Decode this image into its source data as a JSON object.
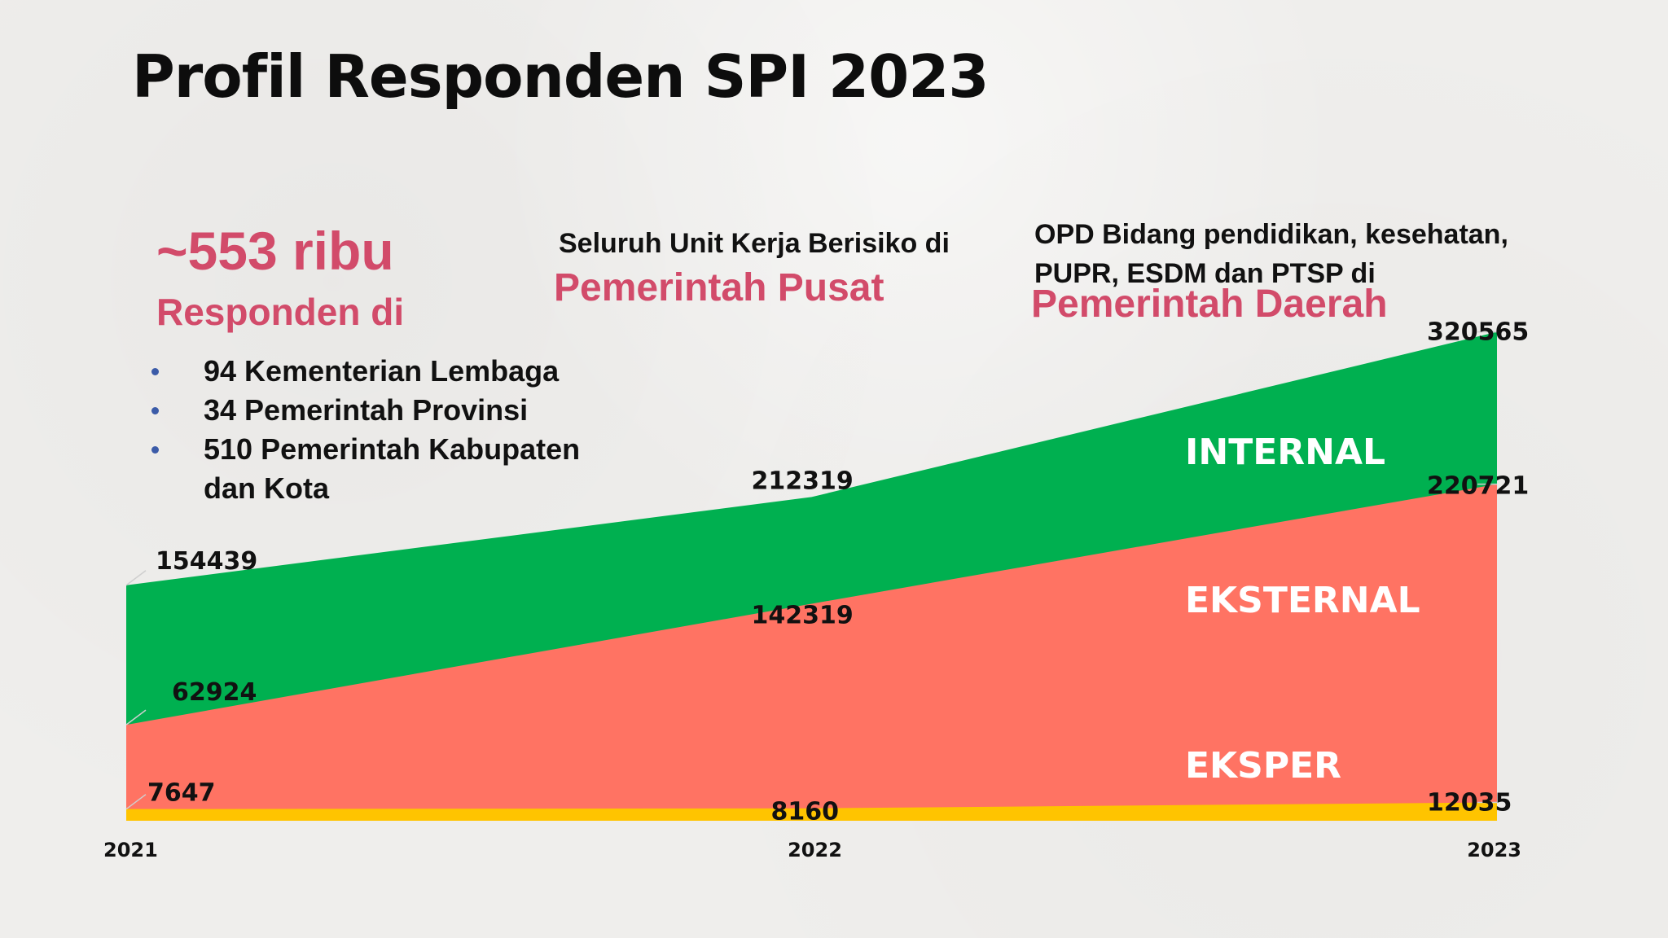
{
  "title": "Profil Responden SPI 2023",
  "summary": {
    "count": "~553 ribu",
    "label": "Responden di",
    "items": [
      "94 Kementerian Lembaga",
      "34 Pemerintah Provinsi",
      "510 Pemerintah Kabupaten dan Kota"
    ]
  },
  "pusat": {
    "description": "Seluruh Unit Kerja Berisiko di",
    "label": "Pemerintah Pusat"
  },
  "daerah": {
    "description_line1": "OPD Bidang pendidikan, kesehatan,",
    "description_line2": "PUPR, ESDM dan PTSP di",
    "label": "Pemerintah Daerah"
  },
  "chart_data": {
    "type": "area",
    "stacked": true,
    "x": [
      "2021",
      "2022",
      "2023"
    ],
    "series": [
      {
        "name": "EKSPER",
        "values": [
          7647,
          8160,
          12035
        ],
        "color": "#ffc400"
      },
      {
        "name": "EKSTERNAL",
        "values": [
          62924,
          142319,
          220721
        ],
        "color": "#ff7363"
      },
      {
        "name": "INTERNAL",
        "values": [
          154439,
          212319,
          320565
        ],
        "color": "#00b050"
      }
    ],
    "ylim": [
      0,
      330000
    ],
    "grid": false,
    "legend": "inline"
  }
}
